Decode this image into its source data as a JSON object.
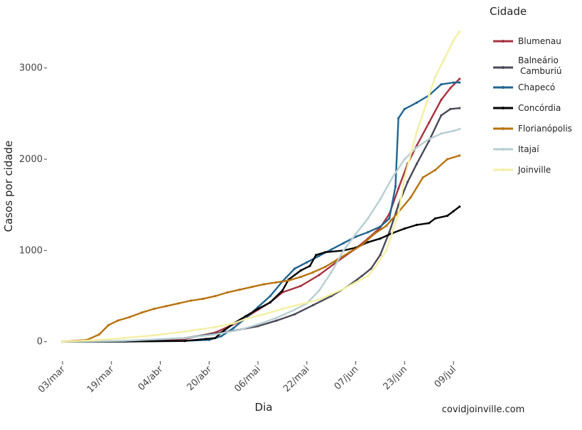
{
  "chart_data": {
    "type": "line",
    "xlabel": "Dia",
    "ylabel": "Casos por cidade",
    "legend_title": "Cidade",
    "legend_position": "right",
    "grid": false,
    "x_ticks": [
      "03/mar",
      "19/mar",
      "04/abr",
      "20/abr",
      "06/mai",
      "22/mai",
      "07/jun",
      "23/jun",
      "09/jul"
    ],
    "x_tick_days": [
      0,
      16,
      32,
      48,
      64,
      80,
      96,
      112,
      128
    ],
    "xlim": [
      "2020-03-03",
      "2020-07-12"
    ],
    "xlim_days": [
      0,
      131
    ],
    "y_ticks": [
      0,
      1000,
      2000,
      3000
    ],
    "ylim": [
      -150,
      3550
    ],
    "source_text": "covidjoinville.com",
    "series": [
      {
        "name": "Blumenau",
        "color": "#a8323e",
        "points": [
          [
            0,
            0
          ],
          [
            20,
            5
          ],
          [
            40,
            30
          ],
          [
            50,
            100
          ],
          [
            58,
            220
          ],
          [
            64,
            350
          ],
          [
            68,
            430
          ],
          [
            72,
            540
          ],
          [
            78,
            610
          ],
          [
            84,
            730
          ],
          [
            90,
            880
          ],
          [
            96,
            1020
          ],
          [
            100,
            1130
          ],
          [
            104,
            1250
          ],
          [
            107,
            1400
          ],
          [
            110,
            1680
          ],
          [
            113,
            1950
          ],
          [
            116,
            2150
          ],
          [
            120,
            2400
          ],
          [
            124,
            2650
          ],
          [
            127,
            2780
          ],
          [
            130,
            2880
          ]
        ]
      },
      {
        "name": "Balneário Camburiú",
        "color": "#4a4858",
        "points": [
          [
            0,
            0
          ],
          [
            20,
            5
          ],
          [
            40,
            40
          ],
          [
            48,
            80
          ],
          [
            56,
            120
          ],
          [
            64,
            170
          ],
          [
            70,
            230
          ],
          [
            76,
            300
          ],
          [
            82,
            400
          ],
          [
            88,
            500
          ],
          [
            94,
            620
          ],
          [
            98,
            720
          ],
          [
            101,
            800
          ],
          [
            104,
            950
          ],
          [
            107,
            1200
          ],
          [
            110,
            1500
          ],
          [
            113,
            1750
          ],
          [
            116,
            1950
          ],
          [
            120,
            2200
          ],
          [
            124,
            2480
          ],
          [
            127,
            2550
          ],
          [
            130,
            2560
          ]
        ]
      },
      {
        "name": "Chapecó",
        "color": "#1f6591",
        "points": [
          [
            0,
            0
          ],
          [
            20,
            2
          ],
          [
            40,
            10
          ],
          [
            48,
            20
          ],
          [
            52,
            60
          ],
          [
            56,
            150
          ],
          [
            60,
            260
          ],
          [
            64,
            380
          ],
          [
            68,
            500
          ],
          [
            72,
            660
          ],
          [
            76,
            800
          ],
          [
            80,
            870
          ],
          [
            84,
            940
          ],
          [
            88,
            1010
          ],
          [
            92,
            1080
          ],
          [
            96,
            1150
          ],
          [
            100,
            1200
          ],
          [
            104,
            1260
          ],
          [
            107,
            1350
          ],
          [
            109,
            1700
          ],
          [
            110,
            2450
          ],
          [
            112,
            2550
          ],
          [
            116,
            2620
          ],
          [
            120,
            2700
          ],
          [
            124,
            2820
          ],
          [
            128,
            2840
          ],
          [
            130,
            2840
          ]
        ]
      },
      {
        "name": "Concórdia",
        "color": "#000000",
        "points": [
          [
            0,
            0
          ],
          [
            20,
            2
          ],
          [
            40,
            8
          ],
          [
            47,
            30
          ],
          [
            50,
            40
          ],
          [
            52,
            100
          ],
          [
            56,
            200
          ],
          [
            60,
            280
          ],
          [
            64,
            360
          ],
          [
            68,
            430
          ],
          [
            72,
            560
          ],
          [
            74,
            680
          ],
          [
            78,
            780
          ],
          [
            81,
            830
          ],
          [
            83,
            950
          ],
          [
            86,
            980
          ],
          [
            92,
            1000
          ],
          [
            96,
            1030
          ],
          [
            100,
            1090
          ],
          [
            104,
            1130
          ],
          [
            108,
            1190
          ],
          [
            112,
            1240
          ],
          [
            116,
            1280
          ],
          [
            120,
            1300
          ],
          [
            122,
            1350
          ],
          [
            126,
            1380
          ],
          [
            128,
            1430
          ],
          [
            130,
            1480
          ]
        ]
      },
      {
        "name": "Florianópolis",
        "color": "#b8730e",
        "points": [
          [
            0,
            0
          ],
          [
            8,
            20
          ],
          [
            12,
            80
          ],
          [
            15,
            180
          ],
          [
            18,
            230
          ],
          [
            22,
            270
          ],
          [
            26,
            320
          ],
          [
            30,
            360
          ],
          [
            34,
            390
          ],
          [
            38,
            420
          ],
          [
            42,
            450
          ],
          [
            46,
            470
          ],
          [
            50,
            500
          ],
          [
            54,
            540
          ],
          [
            58,
            570
          ],
          [
            62,
            600
          ],
          [
            66,
            630
          ],
          [
            70,
            650
          ],
          [
            74,
            670
          ],
          [
            78,
            710
          ],
          [
            82,
            760
          ],
          [
            86,
            820
          ],
          [
            90,
            900
          ],
          [
            94,
            980
          ],
          [
            98,
            1060
          ],
          [
            102,
            1180
          ],
          [
            106,
            1270
          ],
          [
            110,
            1420
          ],
          [
            114,
            1580
          ],
          [
            118,
            1800
          ],
          [
            122,
            1880
          ],
          [
            126,
            2000
          ],
          [
            130,
            2040
          ]
        ]
      },
      {
        "name": "Itajaí",
        "color": "#b8ced2",
        "points": [
          [
            0,
            0
          ],
          [
            20,
            10
          ],
          [
            40,
            40
          ],
          [
            50,
            80
          ],
          [
            58,
            130
          ],
          [
            64,
            190
          ],
          [
            70,
            260
          ],
          [
            76,
            350
          ],
          [
            80,
            420
          ],
          [
            84,
            560
          ],
          [
            88,
            760
          ],
          [
            92,
            1000
          ],
          [
            96,
            1180
          ],
          [
            100,
            1350
          ],
          [
            104,
            1560
          ],
          [
            108,
            1800
          ],
          [
            112,
            2000
          ],
          [
            116,
            2130
          ],
          [
            120,
            2220
          ],
          [
            124,
            2280
          ],
          [
            128,
            2310
          ],
          [
            130,
            2330
          ]
        ]
      },
      {
        "name": "Joinville",
        "color": "#f4efa3",
        "points": [
          [
            0,
            0
          ],
          [
            10,
            15
          ],
          [
            20,
            40
          ],
          [
            30,
            70
          ],
          [
            40,
            110
          ],
          [
            50,
            160
          ],
          [
            56,
            200
          ],
          [
            60,
            250
          ],
          [
            66,
            300
          ],
          [
            72,
            360
          ],
          [
            78,
            410
          ],
          [
            84,
            460
          ],
          [
            88,
            520
          ],
          [
            92,
            580
          ],
          [
            96,
            650
          ],
          [
            100,
            720
          ],
          [
            102,
            800
          ],
          [
            106,
            1000
          ],
          [
            110,
            1400
          ],
          [
            112,
            1800
          ],
          [
            116,
            2300
          ],
          [
            120,
            2700
          ],
          [
            122,
            2900
          ],
          [
            125,
            3100
          ],
          [
            128,
            3300
          ],
          [
            130,
            3400
          ]
        ]
      }
    ]
  }
}
